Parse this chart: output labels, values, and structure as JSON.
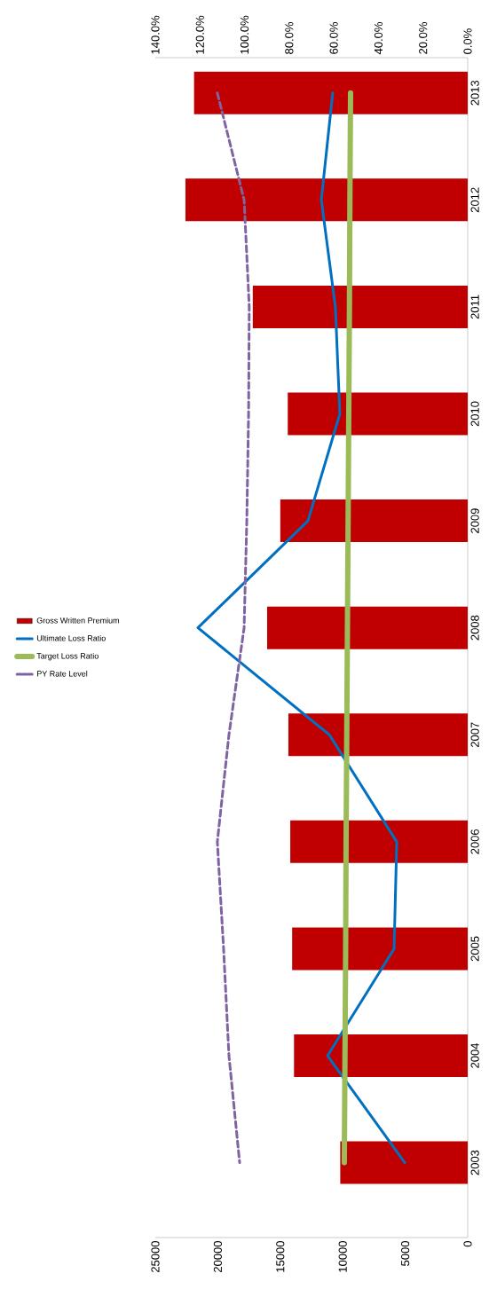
{
  "chart_data": {
    "type": "bar",
    "orientation": "horizontal",
    "categories": [
      "2013",
      "2012",
      "2011",
      "2010",
      "2009",
      "2008",
      "2007",
      "2006",
      "2005",
      "2004",
      "2003"
    ],
    "series": [
      {
        "name": "Gross Written Premium",
        "color": "#c00000",
        "values": [
          21900,
          22600,
          17200,
          14400,
          15000,
          16050,
          14350,
          14200,
          14050,
          13900,
          10200
        ]
      },
      {
        "name": "Ultimate Loss Ratio",
        "type": "line",
        "axis": "x2",
        "color": "#0070c0",
        "values": [
          60.5,
          65.6,
          59.3,
          57.3,
          71.6,
          120.9,
          62.0,
          31.8,
          33.0,
          62.8,
          28.2
        ]
      },
      {
        "name": "Target Loss Ratio",
        "type": "line",
        "axis": "x2",
        "color": "#9bbb59",
        "values": [
          52.5,
          52.8,
          53.0,
          53.3,
          53.6,
          53.9,
          54.2,
          54.5,
          54.7,
          55.0,
          55.3
        ]
      },
      {
        "name": "PY Rate Level",
        "type": "line",
        "axis": "x2",
        "color": "#8064a2",
        "line_style": "dashed",
        "values": [
          112.2,
          100.2,
          97.9,
          98.2,
          99.0,
          100.2,
          107.0,
          112.2,
          109.4,
          107.0,
          102.2
        ]
      }
    ],
    "xlim": [
      25000,
      0
    ],
    "xticks": [
      0,
      5000,
      10000,
      15000,
      20000,
      25000
    ],
    "x2lim": [
      140,
      0
    ],
    "x2ticks": [
      {
        "value": 0,
        "label": "0.0%"
      },
      {
        "value": 20,
        "label": "20.0%"
      },
      {
        "value": 40,
        "label": "40.0%"
      },
      {
        "value": 60,
        "label": "60.0%"
      },
      {
        "value": 80,
        "label": "80.0%"
      },
      {
        "value": 100,
        "label": "100.0%"
      },
      {
        "value": 120,
        "label": "120.0%"
      },
      {
        "value": 140,
        "label": "140.0%"
      }
    ],
    "legend": "left",
    "marker": "none"
  }
}
